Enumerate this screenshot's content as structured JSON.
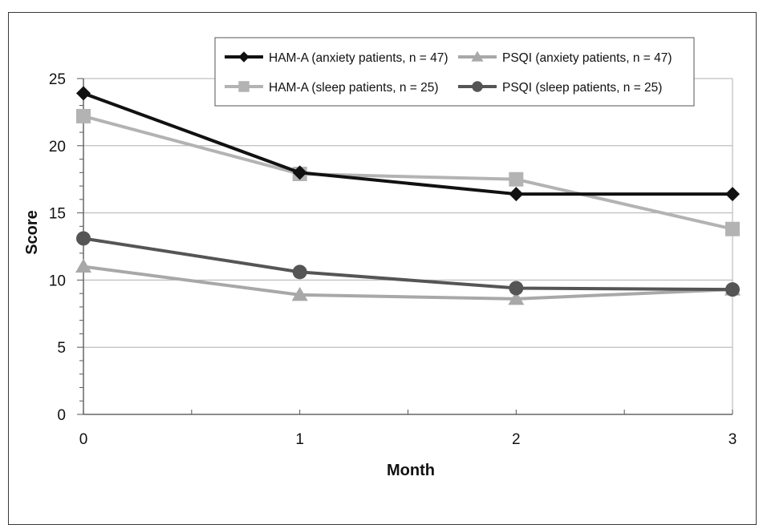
{
  "chart_data": {
    "type": "line",
    "x": [
      0,
      1,
      2,
      3
    ],
    "xlabel": "Month",
    "ylabel": "Score",
    "xlim": [
      0,
      3
    ],
    "ylim": [
      0,
      25
    ],
    "x_ticks": [
      "0",
      "1",
      "2",
      "3"
    ],
    "y_ticks": [
      "0",
      "5",
      "10",
      "15",
      "20",
      "25"
    ],
    "grid": "horizontal",
    "legend_position": "top-right",
    "series": [
      {
        "name": "HAM-A (anxiety patients, n = 47)",
        "values": [
          23.9,
          18.0,
          16.4,
          16.4
        ],
        "color": "#111111",
        "marker": "diamond"
      },
      {
        "name": "PSQI (anxiety patients, n = 47)",
        "values": [
          11.0,
          8.9,
          8.6,
          9.3
        ],
        "color": "#a8a8a8",
        "marker": "triangle"
      },
      {
        "name": "HAM-A (sleep patients, n = 25)",
        "values": [
          22.2,
          17.9,
          17.5,
          13.8
        ],
        "color": "#b3b3b3",
        "marker": "square"
      },
      {
        "name": "PSQI (sleep patients, n = 25)",
        "values": [
          13.1,
          10.6,
          9.4,
          9.3
        ],
        "color": "#555555",
        "marker": "circle"
      }
    ]
  }
}
